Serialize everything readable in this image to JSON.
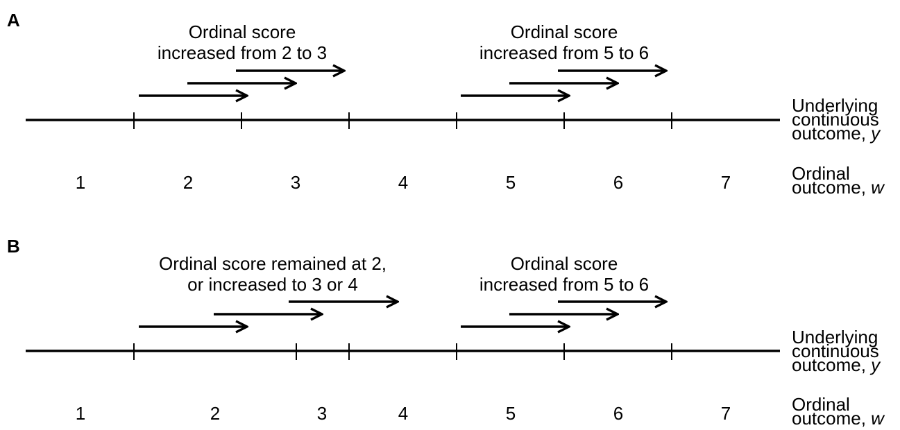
{
  "panels": [
    {
      "letter": "A",
      "caption_left": [
        "Ordinal score",
        "increased from 2 to 3"
      ],
      "caption_right": [
        "Ordinal score",
        "increased from 5 to 6"
      ],
      "ordinal_scores": [
        "1",
        "2",
        "3",
        "4",
        "5",
        "6",
        "7"
      ],
      "continuous_label": [
        "Underlying",
        "continuous",
        "outcome, ",
        "y"
      ],
      "ordinal_label": [
        "Ordinal",
        "outcome, ",
        "w"
      ]
    },
    {
      "letter": "B",
      "caption_left": [
        "Ordinal score remained at 2,",
        "or increased to 3 or 4"
      ],
      "caption_right": [
        "Ordinal score",
        "increased from 5 to 6"
      ],
      "ordinal_scores": [
        "1",
        "2",
        "3",
        "4",
        "5",
        "6",
        "7"
      ],
      "continuous_label": [
        "Underlying",
        "continuous",
        "outcome, ",
        "y"
      ],
      "ordinal_label": [
        "Ordinal",
        "outcome, ",
        "w"
      ]
    }
  ]
}
